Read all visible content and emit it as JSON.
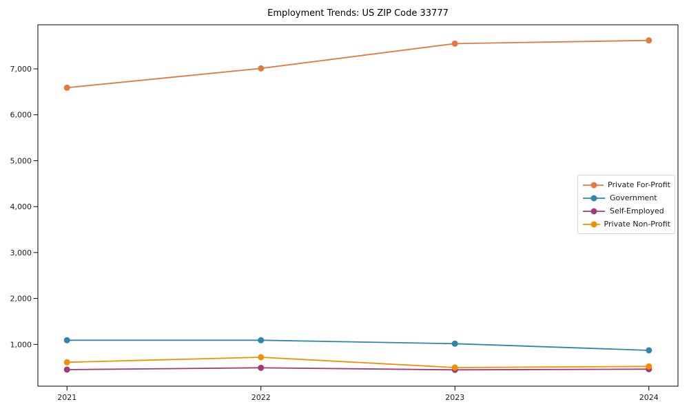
{
  "chart_data": {
    "type": "line",
    "title": "Employment Trends: US ZIP Code 33777",
    "categories": [
      "2021",
      "2022",
      "2023",
      "2024"
    ],
    "series": [
      {
        "name": "Private For-Profit",
        "color": "#E2793E",
        "values": [
          6590,
          7010,
          7550,
          7620
        ]
      },
      {
        "name": "Government",
        "color": "#2E86AB",
        "values": [
          1090,
          1090,
          1015,
          870
        ]
      },
      {
        "name": "Self-Employed",
        "color": "#A23B72",
        "values": [
          450,
          490,
          445,
          460
        ]
      },
      {
        "name": "Private Non-Profit",
        "color": "#F18F01",
        "values": [
          610,
          720,
          495,
          520
        ]
      }
    ],
    "xlabel": "",
    "ylabel": "",
    "ylim": [
      90,
      7960
    ],
    "yticks": [
      1000,
      2000,
      3000,
      4000,
      5000,
      6000,
      7000
    ],
    "ytick_labels": [
      "1,000",
      "2,000",
      "3,000",
      "4,000",
      "5,000",
      "6,000",
      "7,000"
    ],
    "grid": "off",
    "legend_position": "center right",
    "marker": "circle"
  }
}
